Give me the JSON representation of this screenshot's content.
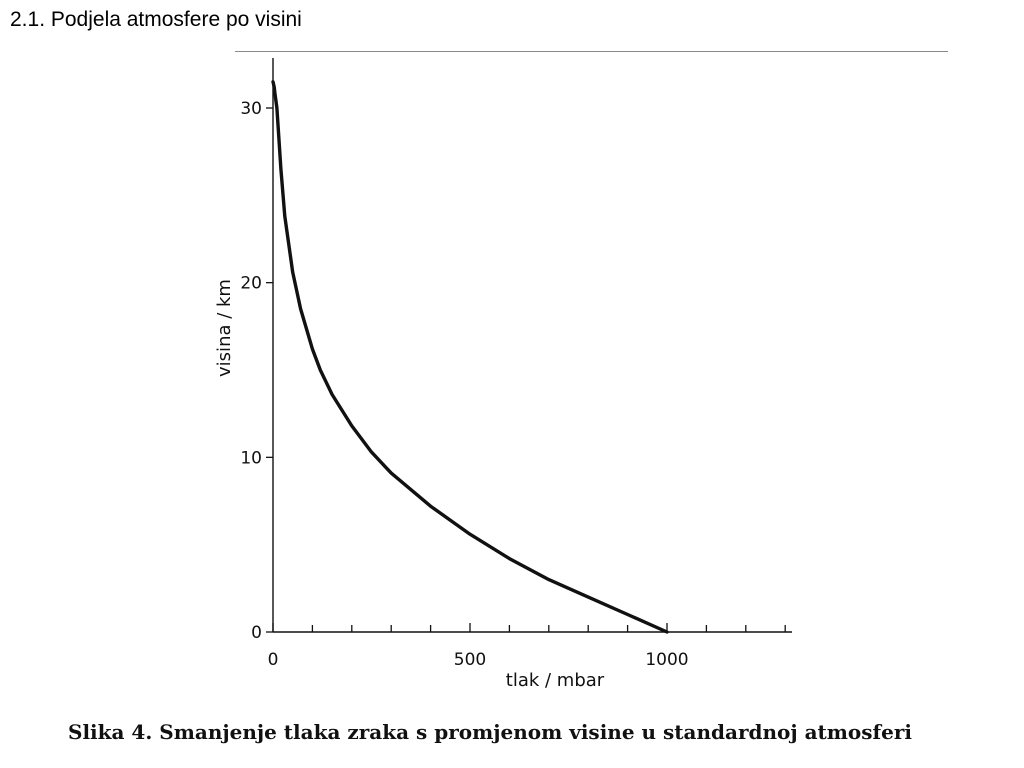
{
  "slide": {
    "title": "2.1. Podjela atmosfere po visini",
    "caption": "Slika 4. Smanjenje tlaka zraka s promjenom visine u standardnoj atmosferi"
  },
  "chart_data": {
    "type": "line",
    "title": "",
    "xlabel": "tlak / mbar",
    "ylabel": "visina / km",
    "xlim": [
      0,
      1300
    ],
    "ylim": [
      0,
      32
    ],
    "x_ticks": [
      0,
      500,
      1000
    ],
    "y_ticks": [
      0,
      10,
      20,
      30
    ],
    "x_minor_step": 100,
    "grid": false,
    "legend": "none",
    "line_color": "#111111",
    "series": [
      {
        "x": [
          1000,
          900,
          800,
          700,
          600,
          500,
          400,
          300,
          250,
          200,
          150,
          120,
          100,
          70,
          50,
          30,
          20,
          10,
          5,
          3,
          0
        ],
        "y": [
          0,
          1,
          2,
          3,
          4.2,
          5.6,
          7.2,
          9.1,
          10.3,
          11.8,
          13.6,
          15,
          16.2,
          18.5,
          20.6,
          23.8,
          26.5,
          30.0,
          30.8,
          31.2,
          31.5
        ]
      }
    ]
  }
}
